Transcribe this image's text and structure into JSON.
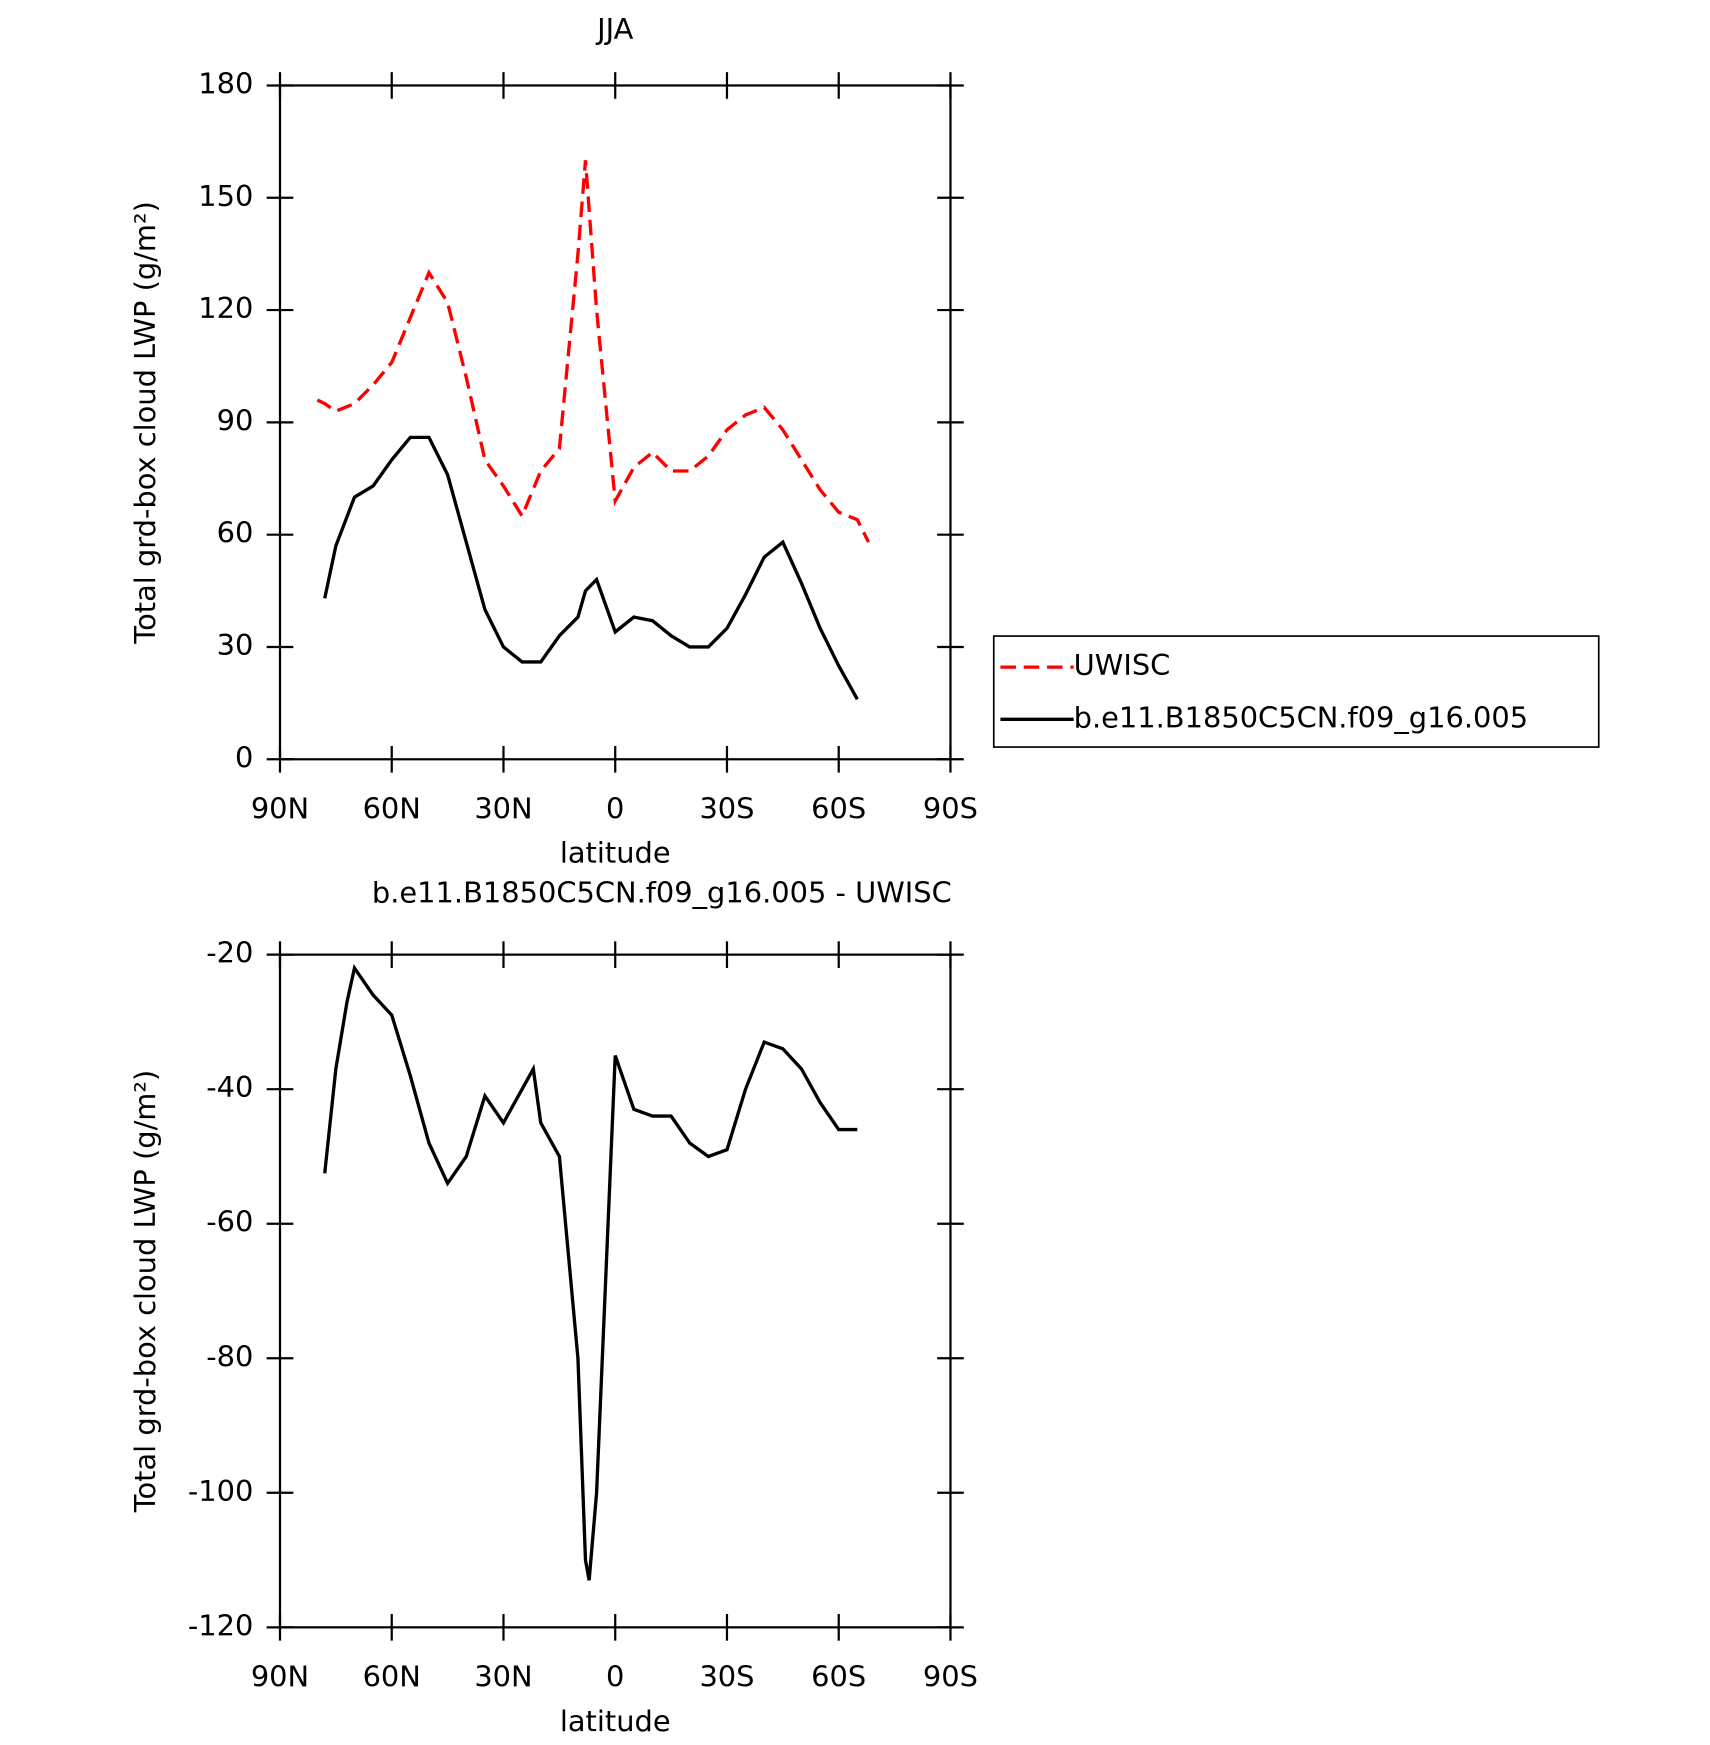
{
  "chart_data": [
    {
      "type": "line",
      "title": "JJA",
      "x_label": "latitude",
      "y_label": "Total grd-box cloud LWP (g/m²)",
      "x": [
        80,
        78,
        75,
        70,
        65,
        60,
        55,
        50,
        45,
        40,
        35,
        30,
        25,
        20,
        15,
        10,
        8,
        5,
        0,
        -5,
        -10,
        -15,
        -20,
        -25,
        -30,
        -35,
        -40,
        -45,
        -50,
        -55,
        -60,
        -65,
        -68
      ],
      "series": [
        {
          "name": "UWISC",
          "color": "#ff0000",
          "line_style": "dashed",
          "values": [
            96,
            95,
            93,
            95,
            100,
            106,
            118,
            130,
            122,
            102,
            80,
            73,
            65,
            77,
            83,
            135,
            160,
            120,
            69,
            78,
            82,
            77,
            77,
            81,
            88,
            92,
            94,
            88,
            80,
            72,
            66,
            64,
            58
          ]
        },
        {
          "name": "b.e11.B1850C5CN.f09_g16.005",
          "color": "#000000",
          "line_style": "solid",
          "values": [
            null,
            43,
            57,
            70,
            73,
            80,
            86,
            86,
            76,
            58,
            40,
            30,
            26,
            26,
            33,
            38,
            45,
            48,
            34,
            38,
            37,
            33,
            30,
            30,
            35,
            44,
            54,
            58,
            47,
            35,
            25,
            16,
            null
          ]
        }
      ],
      "xlim": [
        90,
        -90
      ],
      "xticks": [
        {
          "value": 90,
          "label": "90N"
        },
        {
          "value": 60,
          "label": "60N"
        },
        {
          "value": 30,
          "label": "30N"
        },
        0,
        {
          "value": -30,
          "label": "30S"
        },
        {
          "value": -60,
          "label": "60S"
        },
        {
          "value": -90,
          "label": "90S"
        }
      ],
      "ylim": [
        0,
        180
      ],
      "yticks": [
        0,
        30,
        60,
        90,
        120,
        150,
        180
      ],
      "legend": "right"
    },
    {
      "type": "line",
      "title": "b.e11.B1850C5CN.f09_g16.005 - UWISC",
      "x_label": "latitude",
      "y_label": "Total grd-box cloud LWP (g/m²)",
      "x": [
        78,
        75,
        72,
        70,
        65,
        60,
        55,
        50,
        45,
        40,
        35,
        30,
        25,
        22,
        20,
        15,
        10,
        8,
        7,
        5,
        0,
        -5,
        -10,
        -15,
        -20,
        -25,
        -30,
        -35,
        -40,
        -45,
        -50,
        -55,
        -60,
        -65
      ],
      "series": [
        {
          "color": "#000000",
          "line_style": "solid",
          "values": [
            -52.5,
            -37,
            -27,
            -22,
            -26,
            -29,
            -38,
            -48,
            -54,
            -50,
            -41,
            -45,
            -40,
            -37,
            -45,
            -50,
            -80,
            -110,
            -113,
            -100,
            -35,
            -43,
            -44,
            -44,
            -48,
            -50,
            -49,
            -40,
            -33,
            -34,
            -37,
            -42,
            -46,
            -46
          ]
        }
      ],
      "xlim": [
        90,
        -90
      ],
      "xticks": [
        {
          "value": 90,
          "label": "90N"
        },
        {
          "value": 60,
          "label": "60N"
        },
        {
          "value": 30,
          "label": "30N"
        },
        0,
        {
          "value": -30,
          "label": "30S"
        },
        {
          "value": -60,
          "label": "60S"
        },
        {
          "value": -90,
          "label": "90S"
        }
      ],
      "ylim": [
        -120,
        -20
      ],
      "yticks": [
        -120,
        -100,
        -80,
        -60,
        -40,
        -20
      ]
    }
  ]
}
